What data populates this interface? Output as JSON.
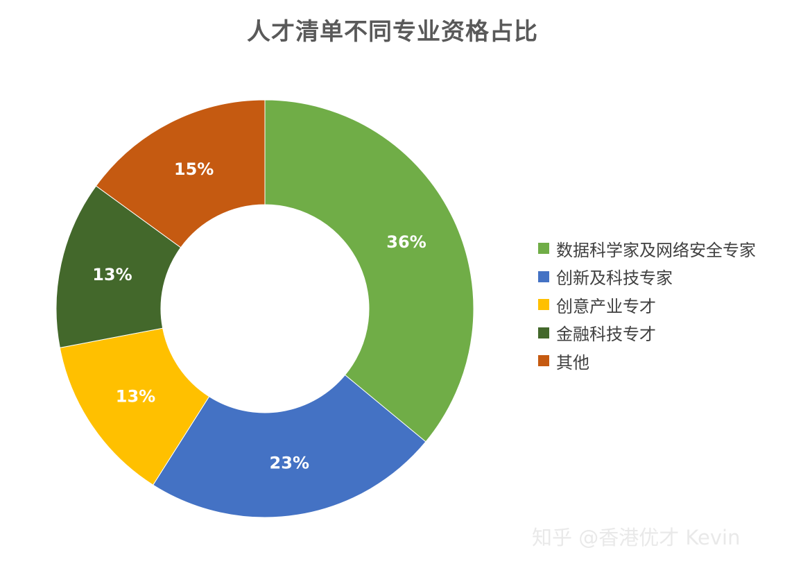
{
  "chart_data": {
    "type": "pie",
    "title": "人才清单不同专业资格占比",
    "categories": [
      "数据科学家及网络安全专家",
      "创新及科技专家",
      "创意产业专才",
      "金融科技专才",
      "其他"
    ],
    "values": [
      36,
      23,
      13,
      13,
      15
    ],
    "value_labels": [
      "36%",
      "23%",
      "13%",
      "13%",
      "15%"
    ],
    "colors": [
      "#70AD47",
      "#4472C4",
      "#FFC000",
      "#43682B",
      "#C55A11"
    ],
    "donut": true,
    "legend_position": "right"
  },
  "watermark": "知乎 @香港优才 Kevin"
}
